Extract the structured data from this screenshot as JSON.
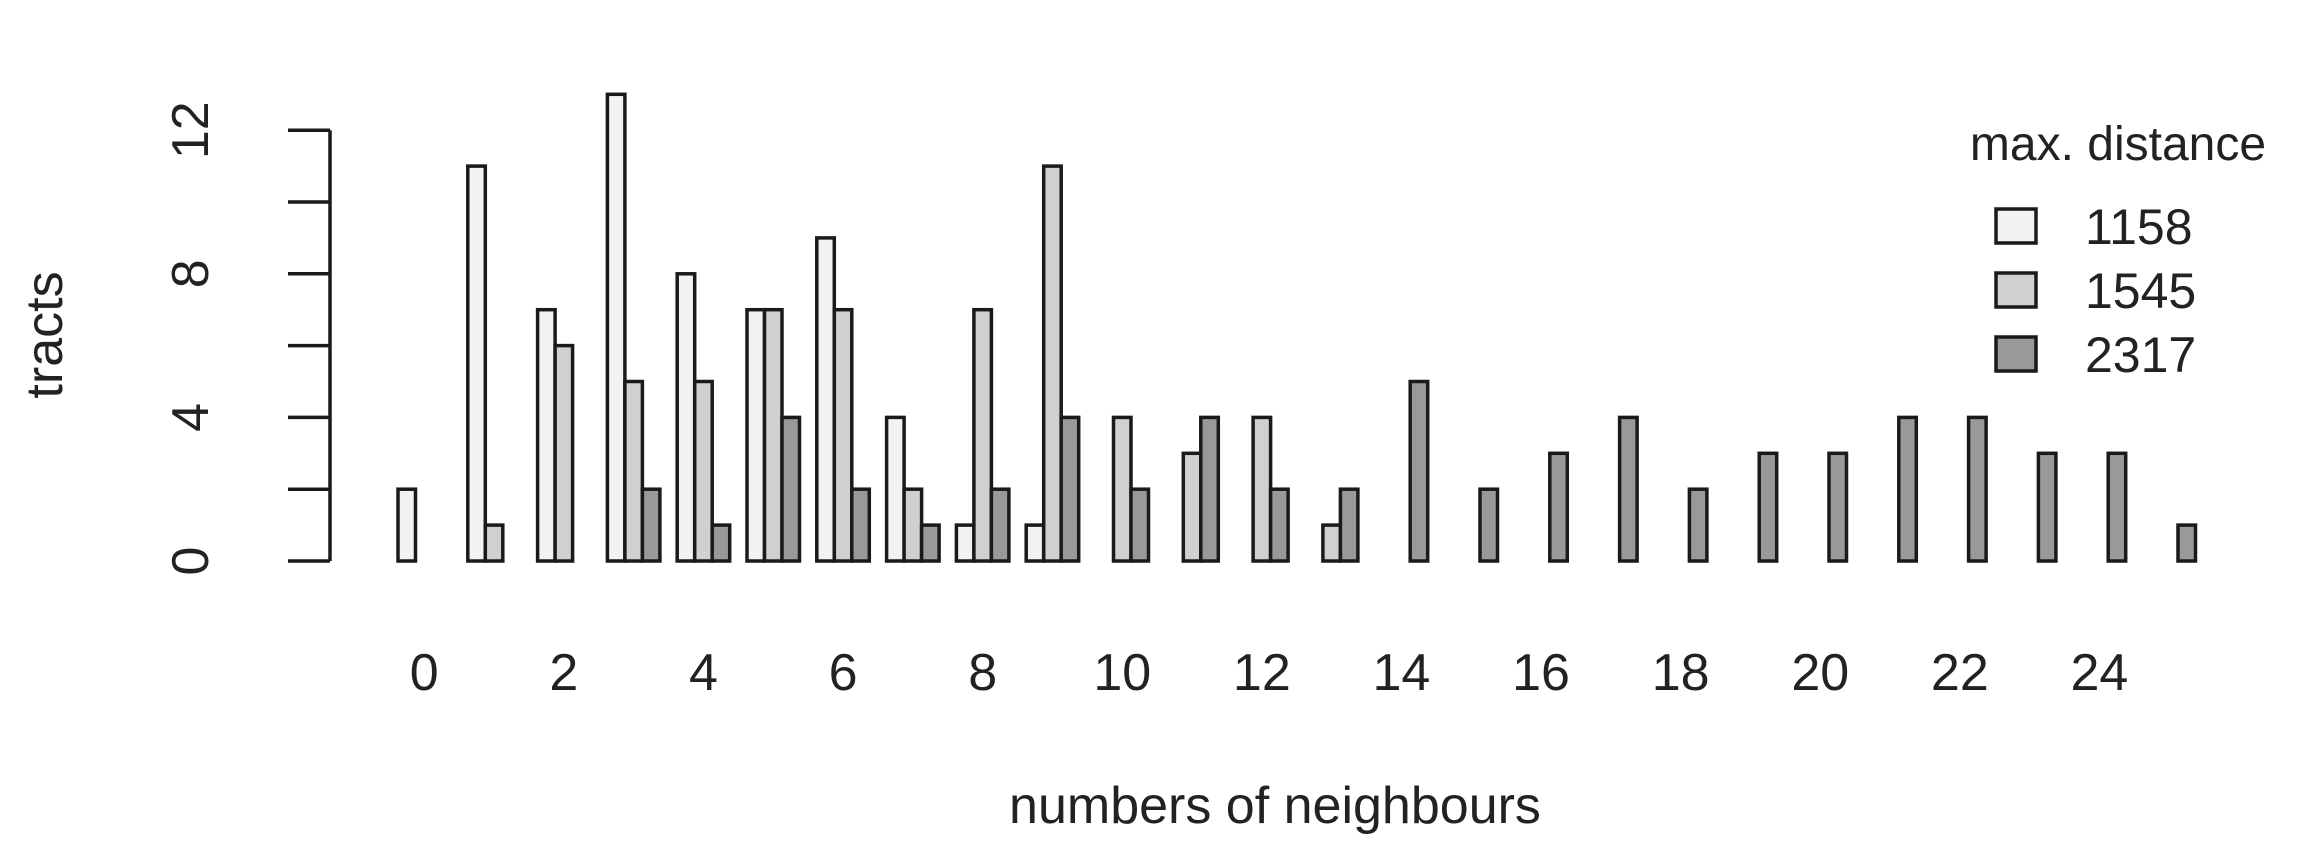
{
  "chart_data": {
    "type": "bar",
    "categories": [
      "0",
      "1",
      "2",
      "3",
      "4",
      "5",
      "6",
      "7",
      "8",
      "9",
      "10",
      "11",
      "12",
      "13",
      "14",
      "15",
      "16",
      "17",
      "18",
      "19",
      "20",
      "21",
      "22",
      "23",
      "24",
      "25"
    ],
    "category_labels_shown": [
      "0",
      "",
      "2",
      "",
      "4",
      "",
      "6",
      "",
      "8",
      "",
      "10",
      "",
      "12",
      "",
      "14",
      "",
      "16",
      "",
      "18",
      "",
      "20",
      "",
      "22",
      "",
      "24",
      ""
    ],
    "series": [
      {
        "name": "1158",
        "color": "#f2f2f2",
        "values": [
          2,
          11,
          7,
          13,
          8,
          7,
          9,
          4,
          1,
          1,
          0,
          0,
          0,
          0,
          0,
          0,
          0,
          0,
          0,
          0,
          0,
          0,
          0,
          0,
          0,
          0
        ]
      },
      {
        "name": "1545",
        "color": "#d0d0d0",
        "values": [
          0,
          1,
          6,
          5,
          5,
          7,
          7,
          2,
          7,
          11,
          4,
          3,
          4,
          1,
          0,
          0,
          0,
          0,
          0,
          0,
          0,
          0,
          0,
          0,
          0,
          0
        ]
      },
      {
        "name": "2317",
        "color": "#999999",
        "values": [
          0,
          0,
          0,
          2,
          1,
          4,
          2,
          1,
          2,
          4,
          2,
          4,
          2,
          2,
          5,
          2,
          3,
          4,
          2,
          3,
          3,
          4,
          4,
          3,
          3,
          1
        ]
      }
    ],
    "title": "",
    "xlabel": "numbers of neighbours",
    "ylabel": "tracts",
    "yticks": [
      0,
      4,
      8,
      12
    ],
    "ylim": [
      0,
      13
    ],
    "grid": false,
    "legend": {
      "title": "max. distance",
      "position": "top-right"
    }
  },
  "colors": {
    "outline": "#1a1a1a",
    "text": "#222222"
  }
}
